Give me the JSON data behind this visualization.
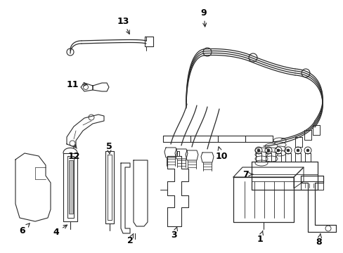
{
  "bg_color": "#ffffff",
  "line_color": "#2a2a2a",
  "label_color": "#000000",
  "label_fontsize": 9,
  "fig_width": 4.89,
  "fig_height": 3.6,
  "dpi": 100
}
